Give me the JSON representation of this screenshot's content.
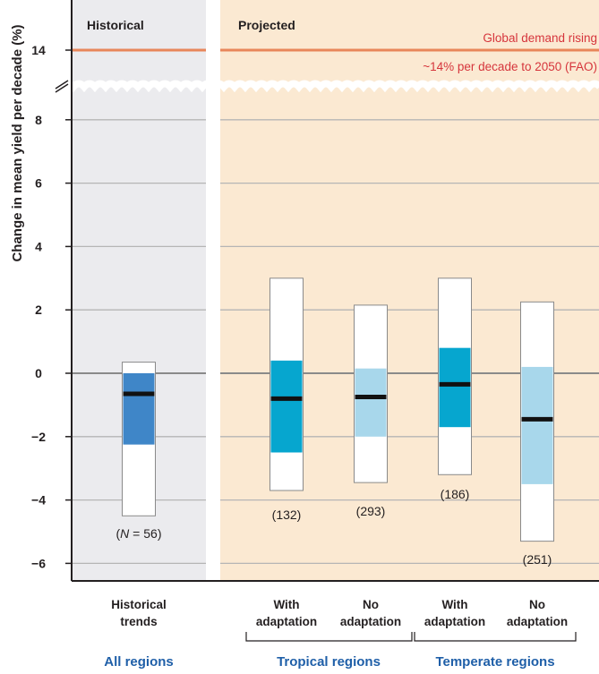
{
  "chart_data": {
    "type": "box",
    "ylabel": "Change in mean yield per decade (%)",
    "y_axis_ticks": [
      "−6",
      "−4",
      "−2",
      "0",
      "2",
      "4",
      "6",
      "8",
      "14"
    ],
    "axis_break": "between 8 and 14",
    "grid": true,
    "panels": [
      {
        "title": "Historical",
        "background": "#ebebee"
      },
      {
        "title": "Projected",
        "background": "#fbe9d2"
      }
    ],
    "reference_line": {
      "value": 14,
      "color": "#e8865a",
      "label_line1": "Global demand rising",
      "label_line2": "~14% per decade to 2050 (FAO)"
    },
    "series": [
      {
        "category_line1": "Historical",
        "category_line2": "trends",
        "count_prefix": "(",
        "count_n": "N",
        "count_eq": " = ",
        "count_value": "56",
        "count_suffix": ")",
        "min": -4.5,
        "q1": -2.25,
        "median": -0.65,
        "q3": 0.0,
        "max": 0.35,
        "color": "#3f86c8",
        "panel": 0
      },
      {
        "category_line1": "With",
        "category_line2": "adaptation",
        "count_label": "(132)",
        "min": -3.7,
        "q1": -2.5,
        "median": -0.8,
        "q3": 0.4,
        "max": 3.0,
        "color": "#06a6cf",
        "panel": 1
      },
      {
        "category_line1": "No",
        "category_line2": "adaptation",
        "count_label": "(293)",
        "min": -3.45,
        "q1": -2.0,
        "median": -0.75,
        "q3": 0.15,
        "max": 2.15,
        "color": "#a8d7eb",
        "panel": 1
      },
      {
        "category_line1": "With",
        "category_line2": "adaptation",
        "count_label": "(186)",
        "min": -3.2,
        "q1": -1.7,
        "median": -0.35,
        "q3": 0.8,
        "max": 3.0,
        "color": "#06a6cf",
        "panel": 1
      },
      {
        "category_line1": "No",
        "category_line2": "adaptation",
        "count_label": "(251)",
        "min": -5.3,
        "q1": -3.5,
        "median": -1.45,
        "q3": 0.2,
        "max": 2.25,
        "color": "#a8d7eb",
        "panel": 1
      }
    ],
    "groups": [
      {
        "label": "All regions"
      },
      {
        "label": "Tropical regions"
      },
      {
        "label": "Temperate regions"
      }
    ]
  }
}
